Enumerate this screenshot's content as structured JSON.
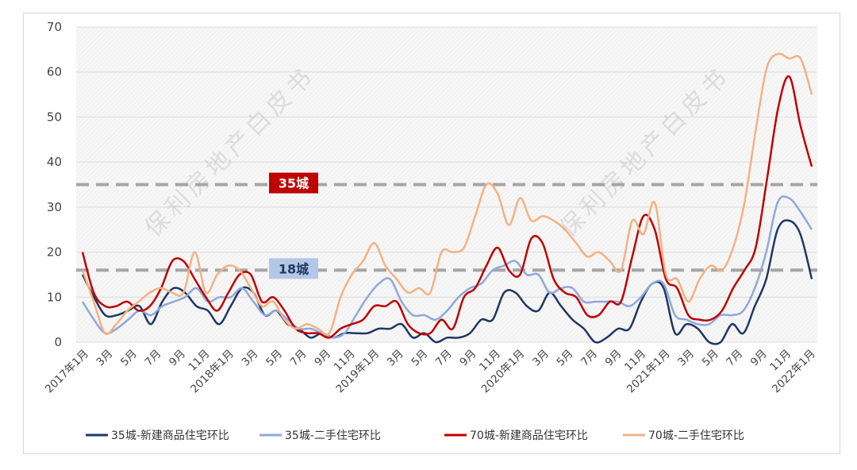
{
  "watermark": "保利房地产白皮书",
  "chart_data": {
    "type": "line",
    "ylim": [
      0,
      70
    ],
    "yticks": [
      0,
      10,
      20,
      30,
      40,
      50,
      60,
      70
    ],
    "x_labels": [
      "2017年1月",
      "3月",
      "5月",
      "7月",
      "9月",
      "11月",
      "2018年1月",
      "3月",
      "5月",
      "7月",
      "9月",
      "11月",
      "2019年1月",
      "3月",
      "5月",
      "7月",
      "9月",
      "11月",
      "2020年1月",
      "3月",
      "5月",
      "7月",
      "9月",
      "11月",
      "2021年1月",
      "3月",
      "5月",
      "7月",
      "9月",
      "11月",
      "2022年1月"
    ],
    "reference_lines": [
      {
        "label": "35城",
        "value": 35,
        "color": "#c00000",
        "text_color": "#ffffff"
      },
      {
        "label": "18城",
        "value": 16,
        "color": "#b4c7e7",
        "text_color": "#1f3864"
      }
    ],
    "grid": true,
    "legend_position": "bottom",
    "series": [
      {
        "name": "35城-新建商品住宅环比",
        "color": "#1f3864",
        "values": [
          15,
          10,
          6,
          6,
          7,
          8,
          4,
          9,
          12,
          11,
          8,
          7,
          4,
          8,
          12,
          11,
          6,
          7,
          4,
          3,
          1,
          2,
          1,
          2,
          2,
          2,
          3,
          3,
          4,
          1,
          2,
          0,
          1,
          1,
          2,
          5,
          5,
          11,
          11,
          8,
          7,
          11,
          8,
          5,
          3,
          0,
          1,
          3,
          3,
          9,
          13,
          12,
          2,
          4,
          3,
          0,
          0,
          4,
          2,
          8,
          14,
          25,
          27,
          24,
          14
        ]
      },
      {
        "name": "35城-二手住宅环比",
        "color": "#8ea9db",
        "values": [
          9,
          5,
          2,
          3,
          5,
          7,
          6,
          8,
          9,
          10,
          12,
          9,
          10,
          10,
          12,
          9,
          6,
          7,
          5,
          3,
          3,
          2,
          1,
          2,
          6,
          10,
          13,
          14,
          9,
          6,
          6,
          5,
          7,
          10,
          12,
          13,
          16,
          17,
          18,
          15,
          15,
          11,
          12,
          12,
          9,
          9,
          9,
          9,
          8,
          10,
          13,
          13,
          6,
          5,
          4,
          4,
          6,
          6,
          7,
          12,
          20,
          31,
          32,
          29,
          25
        ]
      },
      {
        "name": "70城-新建商品住宅环比",
        "color": "#c00000",
        "values": [
          20,
          11,
          8,
          8,
          9,
          7,
          8,
          12,
          18,
          18,
          14,
          10,
          7,
          11,
          15,
          15,
          9,
          10,
          7,
          3,
          2,
          2,
          1,
          3,
          4,
          5,
          8,
          8,
          9,
          4,
          2,
          2,
          5,
          3,
          10,
          12,
          17,
          21,
          16,
          15,
          23,
          22,
          14,
          11,
          10,
          6,
          6,
          9,
          9,
          19,
          28,
          25,
          14,
          12,
          6,
          5,
          5,
          7,
          12,
          16,
          21,
          36,
          52,
          59,
          48,
          39
        ]
      },
      {
        "name": "70城-二手住宅环比",
        "color": "#f4b183",
        "values": [
          16,
          9,
          2,
          4,
          7,
          9,
          11,
          12,
          11,
          11,
          20,
          11,
          15,
          17,
          16,
          12,
          8,
          9,
          5,
          3,
          4,
          3,
          2,
          10,
          15,
          18,
          22,
          17,
          14,
          11,
          12,
          11,
          20,
          20,
          21,
          28,
          35,
          33,
          26,
          32,
          27,
          28,
          27,
          25,
          22,
          19,
          20,
          18,
          16,
          27,
          24,
          31,
          15,
          14,
          9,
          14,
          17,
          16,
          21,
          31,
          47,
          61,
          64,
          63,
          63,
          55
        ]
      }
    ]
  },
  "legend": [
    {
      "label": "35城-新建商品住宅环比",
      "color": "#1f3864"
    },
    {
      "label": "35城-二手住宅环比",
      "color": "#8ea9db"
    },
    {
      "label": "70城-新建商品住宅环比",
      "color": "#c00000"
    },
    {
      "label": "70城-二手住宅环比",
      "color": "#f4b183"
    }
  ]
}
